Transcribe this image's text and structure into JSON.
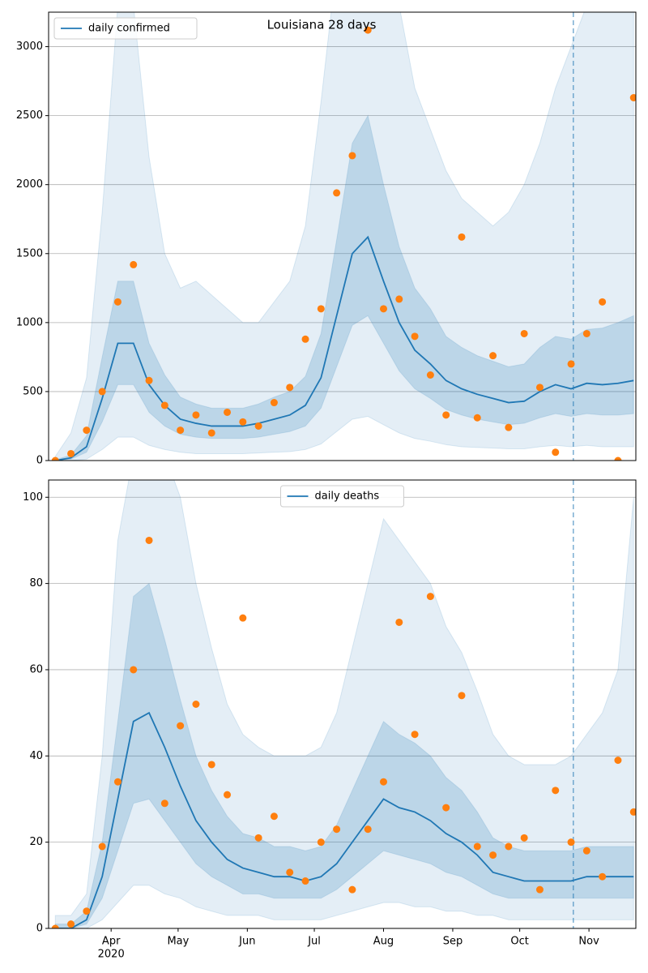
{
  "chart_data": [
    {
      "type": "line",
      "title": "Louisiana 28 days",
      "x": [
        "2020-03-07",
        "2020-03-14",
        "2020-03-21",
        "2020-03-28",
        "2020-04-04",
        "2020-04-11",
        "2020-04-18",
        "2020-04-25",
        "2020-05-02",
        "2020-05-09",
        "2020-05-16",
        "2020-05-23",
        "2020-05-30",
        "2020-06-06",
        "2020-06-13",
        "2020-06-20",
        "2020-06-27",
        "2020-07-04",
        "2020-07-11",
        "2020-07-18",
        "2020-07-25",
        "2020-08-01",
        "2020-08-08",
        "2020-08-15",
        "2020-08-22",
        "2020-08-29",
        "2020-09-05",
        "2020-09-12",
        "2020-09-19",
        "2020-09-26",
        "2020-10-03",
        "2020-10-10",
        "2020-10-17",
        "2020-10-24",
        "2020-10-31",
        "2020-11-07",
        "2020-11-14",
        "2020-11-21"
      ],
      "series": [
        {
          "name": "daily confirmed",
          "color": "#1f77b4",
          "values": [
            0,
            20,
            100,
            450,
            850,
            850,
            550,
            400,
            300,
            270,
            250,
            250,
            250,
            270,
            300,
            330,
            400,
            600,
            1050,
            1500,
            1620,
            1300,
            1000,
            800,
            700,
            580,
            520,
            480,
            450,
            420,
            430,
            500,
            550,
            520,
            560,
            550,
            560,
            580
          ]
        }
      ],
      "points": {
        "color": "#ff7f0e",
        "values": [
          0,
          50,
          220,
          500,
          1150,
          1420,
          580,
          400,
          220,
          330,
          200,
          350,
          280,
          250,
          420,
          530,
          880,
          1100,
          1940,
          2210,
          3120,
          1100,
          1170,
          900,
          620,
          330,
          1620,
          310,
          760,
          240,
          920,
          530,
          60,
          700,
          920,
          1150,
          0,
          2630
        ]
      },
      "band_color": "#1f77b4",
      "bands": [
        {
          "lower": [
            0,
            0,
            10,
            80,
            170,
            170,
            110,
            80,
            60,
            50,
            50,
            50,
            50,
            55,
            60,
            65,
            80,
            120,
            210,
            300,
            320,
            260,
            200,
            160,
            140,
            115,
            100,
            95,
            90,
            85,
            85,
            100,
            110,
            100,
            110,
            100,
            100,
            100
          ],
          "upper": [
            30,
            200,
            600,
            1800,
            3300,
            3300,
            2200,
            1500,
            1250,
            1300,
            1200,
            1100,
            1000,
            1000,
            1150,
            1300,
            1700,
            2600,
            3600,
            3700,
            3700,
            3600,
            3300,
            2700,
            2400,
            2100,
            1900,
            1800,
            1700,
            1800,
            2000,
            2300,
            2700,
            3000,
            3300,
            3400,
            3500,
            3500
          ]
        },
        {
          "lower": [
            0,
            10,
            60,
            280,
            550,
            550,
            350,
            250,
            190,
            170,
            160,
            160,
            160,
            170,
            190,
            210,
            250,
            380,
            680,
            980,
            1050,
            850,
            650,
            520,
            450,
            370,
            330,
            300,
            280,
            260,
            270,
            310,
            340,
            320,
            340,
            330,
            330,
            340
          ],
          "upper": [
            5,
            40,
            180,
            750,
            1300,
            1300,
            850,
            620,
            460,
            410,
            380,
            380,
            380,
            410,
            460,
            500,
            610,
            920,
            1600,
            2300,
            2500,
            2000,
            1550,
            1250,
            1100,
            900,
            820,
            760,
            720,
            680,
            700,
            820,
            900,
            880,
            950,
            960,
            1000,
            1050
          ]
        }
      ],
      "vline": "2020-10-25",
      "xlim": [
        "2020-03-04",
        "2020-11-22"
      ],
      "ylim": [
        0,
        3250
      ],
      "yticks": [
        0,
        500,
        1000,
        1500,
        2000,
        2500,
        3000
      ],
      "grid": true,
      "legend": "upper left"
    },
    {
      "type": "line",
      "x": [
        "2020-03-07",
        "2020-03-14",
        "2020-03-21",
        "2020-03-28",
        "2020-04-04",
        "2020-04-11",
        "2020-04-18",
        "2020-04-25",
        "2020-05-02",
        "2020-05-09",
        "2020-05-16",
        "2020-05-23",
        "2020-05-30",
        "2020-06-06",
        "2020-06-13",
        "2020-06-20",
        "2020-06-27",
        "2020-07-04",
        "2020-07-11",
        "2020-07-18",
        "2020-07-25",
        "2020-08-01",
        "2020-08-08",
        "2020-08-15",
        "2020-08-22",
        "2020-08-29",
        "2020-09-05",
        "2020-09-12",
        "2020-09-19",
        "2020-09-26",
        "2020-10-03",
        "2020-10-10",
        "2020-10-17",
        "2020-10-24",
        "2020-10-31",
        "2020-11-07",
        "2020-11-14",
        "2020-11-21"
      ],
      "series": [
        {
          "name": "daily deaths",
          "color": "#1f77b4",
          "values": [
            0,
            0,
            2,
            12,
            30,
            48,
            50,
            42,
            33,
            25,
            20,
            16,
            14,
            13,
            12,
            12,
            11,
            12,
            15,
            20,
            25,
            30,
            28,
            27,
            25,
            22,
            20,
            17,
            13,
            12,
            11,
            11,
            11,
            11,
            12,
            12,
            12,
            12
          ]
        }
      ],
      "points": {
        "color": "#ff7f0e",
        "values": [
          0,
          1,
          4,
          19,
          34,
          60,
          90,
          29,
          47,
          52,
          38,
          31,
          72,
          21,
          26,
          13,
          11,
          20,
          23,
          9,
          23,
          34,
          71,
          45,
          77,
          28,
          54,
          19,
          17,
          19,
          21,
          9,
          32,
          20,
          18,
          12,
          39,
          27
        ]
      },
      "band_color": "#1f77b4",
      "bands": [
        {
          "lower": [
            0,
            0,
            0,
            2,
            6,
            10,
            10,
            8,
            7,
            5,
            4,
            3,
            3,
            3,
            2,
            2,
            2,
            2,
            3,
            4,
            5,
            6,
            6,
            5,
            5,
            4,
            4,
            3,
            3,
            2,
            2,
            2,
            2,
            2,
            2,
            2,
            2,
            2
          ],
          "upper": [
            3,
            3,
            8,
            40,
            90,
            110,
            110,
            110,
            100,
            80,
            65,
            52,
            45,
            42,
            40,
            40,
            40,
            42,
            50,
            65,
            80,
            95,
            90,
            85,
            80,
            70,
            64,
            55,
            45,
            40,
            38,
            38,
            38,
            40,
            45,
            50,
            60,
            100
          ]
        },
        {
          "lower": [
            0,
            0,
            1,
            7,
            18,
            29,
            30,
            25,
            20,
            15,
            12,
            10,
            8,
            8,
            7,
            7,
            7,
            7,
            9,
            12,
            15,
            18,
            17,
            16,
            15,
            13,
            12,
            10,
            8,
            7,
            7,
            7,
            7,
            7,
            7,
            7,
            7,
            7
          ],
          "upper": [
            1,
            1,
            4,
            20,
            48,
            77,
            80,
            67,
            53,
            40,
            32,
            26,
            22,
            21,
            19,
            19,
            18,
            19,
            24,
            32,
            40,
            48,
            45,
            43,
            40,
            35,
            32,
            27,
            21,
            19,
            18,
            18,
            18,
            18,
            19,
            19,
            19,
            19
          ]
        }
      ],
      "vline": "2020-10-25",
      "xlim": [
        "2020-03-04",
        "2020-11-22"
      ],
      "xticks": [
        {
          "value": "2020-04-01",
          "label": "Apr"
        },
        {
          "value": "2020-05-01",
          "label": "May"
        },
        {
          "value": "2020-06-01",
          "label": "Jun"
        },
        {
          "value": "2020-07-01",
          "label": "Jul"
        },
        {
          "value": "2020-08-01",
          "label": "Aug"
        },
        {
          "value": "2020-09-01",
          "label": "Sep"
        },
        {
          "value": "2020-10-01",
          "label": "Oct"
        },
        {
          "value": "2020-11-01",
          "label": "Nov"
        }
      ],
      "year_label": "2020",
      "ylim": [
        0,
        104
      ],
      "yticks": [
        0,
        20,
        40,
        60,
        80,
        100
      ],
      "grid": true,
      "legend": "upper center"
    }
  ]
}
